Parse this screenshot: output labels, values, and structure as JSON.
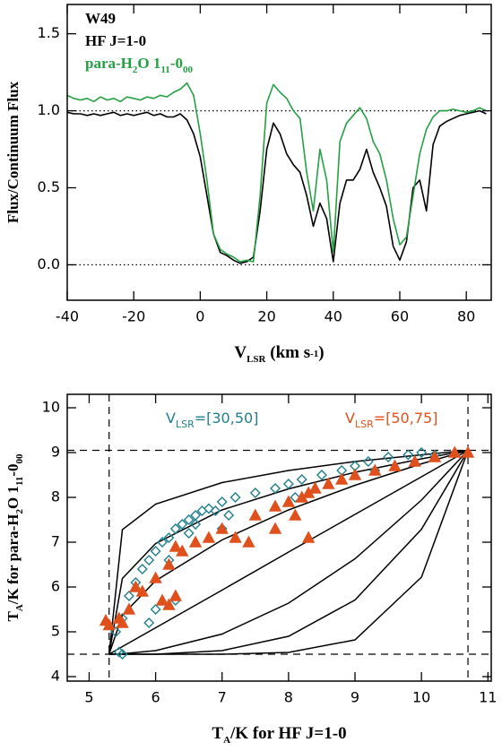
{
  "chart_data": [
    {
      "type": "line",
      "title": "W49",
      "xlabel": [
        {
          "text": "V"
        },
        {
          "text": "LSR",
          "shift": "sub"
        },
        {
          "text": " (km s"
        },
        {
          "text": "-1",
          "shift": "sup"
        },
        {
          "text": ")"
        }
      ],
      "ylabel": "Flux/Continuum Flux",
      "xlim": [
        -40,
        87.5
      ],
      "ylim": [
        -0.23,
        1.69
      ],
      "xticks": [
        -40,
        -20,
        0,
        20,
        40,
        60,
        80
      ],
      "yticks": [
        {
          "value": 0,
          "label": "0.0"
        },
        0.5,
        {
          "value": 1,
          "label": "1.0"
        },
        1.5
      ],
      "hlines": [
        0,
        1
      ],
      "ref_style": "dotted",
      "x": [
        -40,
        -38,
        -36,
        -34,
        -32,
        -30,
        -28,
        -26,
        -24,
        -22,
        -20,
        -18,
        -16,
        -14,
        -12,
        -10,
        -8,
        -6,
        -4,
        -2,
        0,
        2,
        4,
        6,
        8,
        10,
        12,
        14,
        16,
        18,
        20,
        22,
        24,
        26,
        28,
        30,
        32,
        34,
        36,
        38,
        40,
        42,
        44,
        46,
        48,
        50,
        52,
        54,
        56,
        58,
        60,
        62,
        64,
        66,
        68,
        70,
        72,
        74,
        76,
        78,
        80,
        82,
        84,
        86
      ],
      "series": [
        {
          "name": "HF J=1-0",
          "color": "#000000",
          "values": [
            0.99,
            0.98,
            0.98,
            0.97,
            0.98,
            0.97,
            0.98,
            0.99,
            0.97,
            0.98,
            0.97,
            0.98,
            0.99,
            0.97,
            0.98,
            0.96,
            0.96,
            0.98,
            0.94,
            0.85,
            0.7,
            0.45,
            0.2,
            0.08,
            0.06,
            0.03,
            0.01,
            0.02,
            0.05,
            0.35,
            0.75,
            0.92,
            0.85,
            0.72,
            0.65,
            0.6,
            0.45,
            0.25,
            0.4,
            0.3,
            0.02,
            0.4,
            0.55,
            0.55,
            0.62,
            0.75,
            0.6,
            0.5,
            0.38,
            0.12,
            0.03,
            0.15,
            0.5,
            0.55,
            0.35,
            0.78,
            0.9,
            0.93,
            0.95,
            0.97,
            0.98,
            0.99,
            1.0,
            0.98
          ]
        },
        {
          "name": [
            {
              "text": "para-H"
            },
            {
              "text": "2",
              "shift": "sub"
            },
            {
              "text": "O 1"
            },
            {
              "text": "11",
              "shift": "sub"
            },
            {
              "text": "-0"
            },
            {
              "text": "00",
              "shift": "sub"
            }
          ],
          "color": "#24a043",
          "values": [
            1.1,
            1.08,
            1.07,
            1.08,
            1.06,
            1.09,
            1.07,
            1.08,
            1.06,
            1.09,
            1.08,
            1.07,
            1.09,
            1.08,
            1.1,
            1.09,
            1.12,
            1.14,
            1.18,
            1.1,
            0.85,
            0.55,
            0.2,
            0.1,
            0.07,
            0.05,
            0.02,
            0.03,
            0.02,
            0.45,
            1.05,
            1.17,
            1.12,
            1.08,
            1.0,
            0.95,
            0.6,
            0.35,
            0.75,
            0.55,
            0.08,
            0.8,
            0.92,
            0.97,
            1.02,
            0.95,
            0.8,
            0.72,
            0.55,
            0.3,
            0.13,
            0.18,
            0.45,
            0.72,
            0.88,
            0.96,
            1.0,
            1.0,
            1.01,
            1.0,
            0.99,
            1.0,
            1.02,
            1.0
          ]
        }
      ]
    },
    {
      "type": "scatter",
      "xlabel": [
        {
          "text": "T"
        },
        {
          "text": "A",
          "shift": "sub"
        },
        {
          "text": "/K for HF J=1-0"
        }
      ],
      "ylabel": [
        {
          "text": "T"
        },
        {
          "text": "A",
          "shift": "sub"
        },
        {
          "text": "/K for para-H"
        },
        {
          "text": "2",
          "shift": "sub"
        },
        {
          "text": "O 1"
        },
        {
          "text": "11",
          "shift": "sub"
        },
        {
          "text": "-0"
        },
        {
          "text": "00",
          "shift": "sub"
        }
      ],
      "xlim": [
        4.67,
        11.05
      ],
      "ylim": [
        3.9,
        10.3
      ],
      "xticks": [
        5,
        6,
        7,
        8,
        9,
        10,
        11
      ],
      "yticks": [
        4,
        5,
        6,
        7,
        8,
        9,
        10
      ],
      "hlines": [
        4.5,
        9.05
      ],
      "vlines": [
        5.3,
        10.7
      ],
      "ref_style": "dashed",
      "series": [
        {
          "name": [
            {
              "text": "V"
            },
            {
              "text": "LSR",
              "shift": "sub"
            },
            {
              "text": "=[30,50]"
            }
          ],
          "color": "#1f7f8e",
          "marker": "diamond",
          "x": [
            5.45,
            5.5,
            5.4,
            5.5,
            5.6,
            5.7,
            5.8,
            5.9,
            6.0,
            6.1,
            6.2,
            6.3,
            6.4,
            6.5,
            6.6,
            6.7,
            6.8,
            6.9,
            7.0,
            7.2,
            7.5,
            7.8,
            8.0,
            8.2,
            8.5,
            8.8,
            9.0,
            9.2,
            9.5,
            9.8,
            10.0,
            10.2,
            6.3,
            6.0,
            5.9,
            6.5,
            7.1,
            8.1,
            9.3,
            6.2,
            6.6,
            7.0
          ],
          "values": [
            4.55,
            4.5,
            5.0,
            5.3,
            5.8,
            6.1,
            6.4,
            6.6,
            6.8,
            7.0,
            7.1,
            7.3,
            7.4,
            7.5,
            7.6,
            7.7,
            7.75,
            7.7,
            7.9,
            8.0,
            8.1,
            8.2,
            8.3,
            8.4,
            8.5,
            8.6,
            8.7,
            8.8,
            8.9,
            8.95,
            9.0,
            8.95,
            5.7,
            5.5,
            5.2,
            7.2,
            7.6,
            8.0,
            8.6,
            6.6,
            7.4,
            7.3
          ]
        },
        {
          "name": [
            {
              "text": "V"
            },
            {
              "text": "LSR",
              "shift": "sub"
            },
            {
              "text": "=[50,75]"
            }
          ],
          "color": "#e0501c",
          "marker": "triangle",
          "x": [
            5.25,
            5.3,
            5.45,
            5.6,
            5.8,
            6.0,
            6.2,
            6.4,
            6.6,
            6.8,
            7.0,
            7.2,
            7.5,
            7.8,
            8.0,
            8.2,
            8.4,
            8.6,
            8.8,
            9.0,
            9.3,
            9.6,
            9.9,
            10.2,
            10.5,
            10.7,
            6.1,
            6.2,
            6.3,
            7.8,
            8.3,
            8.1,
            8.3,
            6.3,
            7.4,
            5.5,
            5.7
          ],
          "values": [
            5.25,
            5.15,
            5.3,
            5.5,
            5.9,
            6.2,
            6.5,
            6.8,
            7.0,
            7.1,
            7.3,
            7.1,
            7.6,
            7.8,
            7.9,
            8.0,
            8.2,
            8.3,
            8.4,
            8.5,
            8.6,
            8.7,
            8.8,
            8.9,
            9.0,
            9.0,
            5.7,
            5.6,
            5.8,
            7.3,
            8.1,
            7.6,
            7.1,
            6.9,
            7.0,
            5.2,
            6.0
          ]
        }
      ],
      "curves": [
        {
          "color": "#000000",
          "x": [
            5.3,
            5.5,
            6,
            7,
            8,
            9,
            10,
            10.7
          ],
          "values": [
            4.5,
            7.28,
            7.85,
            8.33,
            8.6,
            8.8,
            8.95,
            9.05
          ]
        },
        {
          "color": "#000000",
          "x": [
            5.3,
            5.5,
            6,
            7,
            8,
            9,
            10,
            10.7
          ],
          "values": [
            4.5,
            6.19,
            6.97,
            7.72,
            8.19,
            8.56,
            8.86,
            9.05
          ]
        },
        {
          "color": "#000000",
          "x": [
            5.3,
            5.5,
            6,
            7,
            8,
            9,
            10,
            10.7
          ],
          "values": [
            4.5,
            5.37,
            6.14,
            7.05,
            7.72,
            8.27,
            8.75,
            9.05
          ]
        },
        {
          "color": "#000000",
          "x": [
            5.3,
            5.5,
            6,
            7,
            8,
            9,
            10,
            10.7
          ],
          "values": [
            4.5,
            4.67,
            5.09,
            5.93,
            6.78,
            7.62,
            8.46,
            9.05
          ]
        },
        {
          "color": "#000000",
          "x": [
            5.3,
            5.5,
            6,
            7,
            8,
            9,
            10,
            10.7
          ],
          "values": [
            4.5,
            4.51,
            4.58,
            4.95,
            5.64,
            6.63,
            7.94,
            9.05
          ]
        },
        {
          "color": "#000000",
          "x": [
            5.3,
            5.5,
            6,
            7,
            8,
            9,
            10,
            10.7
          ],
          "values": [
            4.5,
            4.5,
            4.5,
            4.58,
            4.9,
            5.71,
            7.29,
            9.05
          ]
        },
        {
          "color": "#000000",
          "x": [
            5.3,
            5.5,
            6,
            7,
            8,
            9,
            10,
            10.7
          ],
          "values": [
            4.5,
            4.5,
            4.5,
            4.5,
            4.54,
            4.82,
            6.22,
            9.05
          ]
        }
      ]
    }
  ]
}
